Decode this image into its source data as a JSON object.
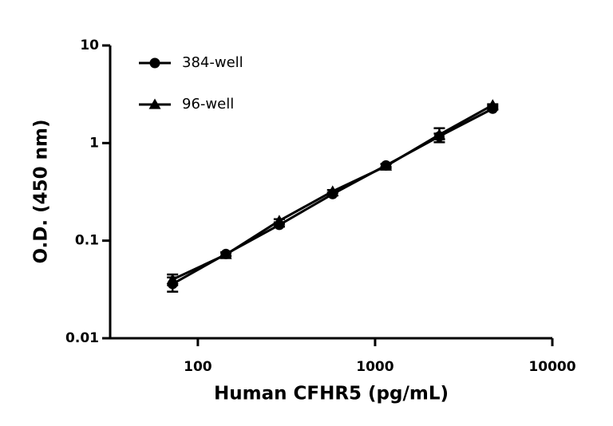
{
  "chart_data": {
    "type": "line",
    "xlabel": "Human CFHR5 (pg/mL)",
    "ylabel": "O.D. (450 nm)",
    "x": [
      72,
      144,
      288,
      576,
      1152,
      2304,
      4608
    ],
    "series": [
      {
        "name": "384-well",
        "color": "#000000",
        "marker": "circle",
        "values": [
          0.036,
          0.073,
          0.145,
          0.3,
          0.59,
          1.17,
          2.25
        ],
        "errors": [
          0.006,
          0.003,
          0.006,
          0.01,
          0.02,
          0.08,
          0.05
        ]
      },
      {
        "name": "96-well",
        "color": "#000000",
        "marker": "triangle",
        "values": [
          0.04,
          0.072,
          0.16,
          0.32,
          0.58,
          1.22,
          2.45
        ],
        "errors": [
          0.005,
          0.003,
          0.006,
          0.01,
          0.03,
          0.2,
          0.05
        ]
      }
    ],
    "xscale": "log",
    "yscale": "log",
    "xlim": [
      32,
      10000
    ],
    "ylim": [
      0.01,
      10
    ],
    "xticks": [
      100,
      1000,
      10000
    ],
    "yticks": [
      0.01,
      0.1,
      1,
      10
    ],
    "legend": "upper left"
  }
}
